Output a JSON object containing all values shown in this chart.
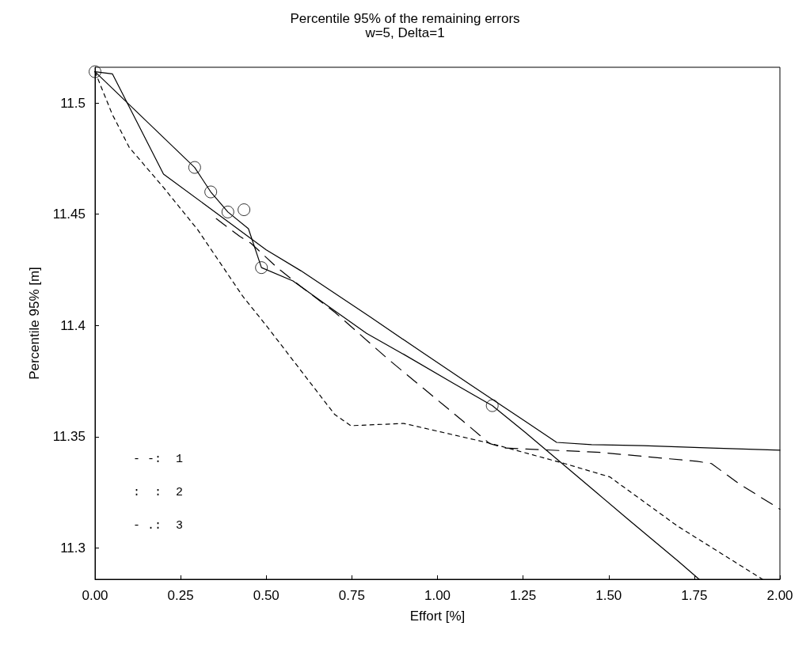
{
  "chart_data": {
    "type": "line",
    "title": "Percentile 95% of the remaining errors",
    "subtitle": "w=5, Delta=1",
    "xlabel": "Effort [%]",
    "ylabel": "Percentile 95% [m]",
    "xlim": [
      0,
      2
    ],
    "ylim": [
      11.286,
      11.516
    ],
    "xticks": [
      {
        "value": 0,
        "label": "0.00"
      },
      {
        "value": 0.25,
        "label": "0.25"
      },
      {
        "value": 0.5,
        "label": "0.50"
      },
      {
        "value": 0.75,
        "label": "0.75"
      },
      {
        "value": 1,
        "label": "1.00"
      },
      {
        "value": 1.25,
        "label": "1.25"
      },
      {
        "value": 1.5,
        "label": "1.50"
      },
      {
        "value": 1.75,
        "label": "1.75"
      },
      {
        "value": 2,
        "label": "2.00"
      }
    ],
    "yticks": [
      11.3,
      11.35,
      11.4,
      11.45,
      11.5
    ],
    "grid": false,
    "marker": "none",
    "series": [
      {
        "color": "#000000",
        "line_style": "solid",
        "x": [
          0,
          0.291,
          0.338,
          0.388,
          0.448,
          0.486,
          0.578,
          0.678,
          0.793,
          0.902,
          1.047,
          1.16,
          1.256,
          1.464,
          1.556,
          1.704,
          1.764
        ],
        "values": [
          11.514,
          11.471,
          11.46,
          11.451,
          11.4435,
          11.426,
          11.42,
          11.409,
          11.3965,
          11.387,
          11.374,
          11.364,
          11.352,
          11.325,
          11.313,
          11.294,
          11.286
        ]
      },
      {
        "color": "#000000",
        "line_style": "solid",
        "x": [
          0,
          0.051,
          0.2,
          0.324,
          0.5,
          0.601,
          0.802,
          0.955,
          1.1,
          1.256,
          1.348,
          1.45,
          1.6,
          1.8,
          2.0
        ],
        "values": [
          11.514,
          11.513,
          11.468,
          11.454,
          11.434,
          11.4246,
          11.404,
          11.388,
          11.373,
          11.357,
          11.3475,
          11.3465,
          11.346,
          11.345,
          11.344
        ]
      },
      {
        "color": "#000000",
        "line_style": "dotted",
        "x": [
          0,
          0.05,
          0.1,
          0.2,
          0.3,
          0.432,
          0.5,
          0.6,
          0.7,
          0.747,
          0.902,
          1.156,
          1.371,
          1.503,
          1.7,
          1.949
        ],
        "values": [
          11.514,
          11.495,
          11.48,
          11.462,
          11.443,
          11.413,
          11.4,
          11.38,
          11.36,
          11.355,
          11.356,
          11.347,
          11.338,
          11.332,
          11.31,
          11.286
        ]
      },
      {
        "color": "#000000",
        "line_style": "dashed",
        "x": [
          0.354,
          0.423,
          0.455,
          0.532,
          0.601,
          0.7,
          0.855,
          1.075,
          1.152,
          1.195,
          1.475,
          1.757,
          1.8,
          1.88,
          2.0
        ],
        "values": [
          11.448,
          11.44,
          11.437,
          11.426,
          11.4175,
          11.406,
          11.385,
          11.357,
          11.347,
          11.345,
          11.343,
          11.339,
          11.338,
          11.329,
          11.3175
        ]
      },
      {
        "type": "scatter",
        "color": "#000000",
        "marker": "circle",
        "x": [
          0,
          0.291,
          0.338,
          0.388,
          0.435,
          0.486,
          1.16
        ],
        "values": [
          11.514,
          11.471,
          11.46,
          11.451,
          11.452,
          11.426,
          11.364
        ]
      }
    ],
    "annotations": [
      "- -:  1",
      ":  :  2",
      "- .:  3"
    ]
  }
}
